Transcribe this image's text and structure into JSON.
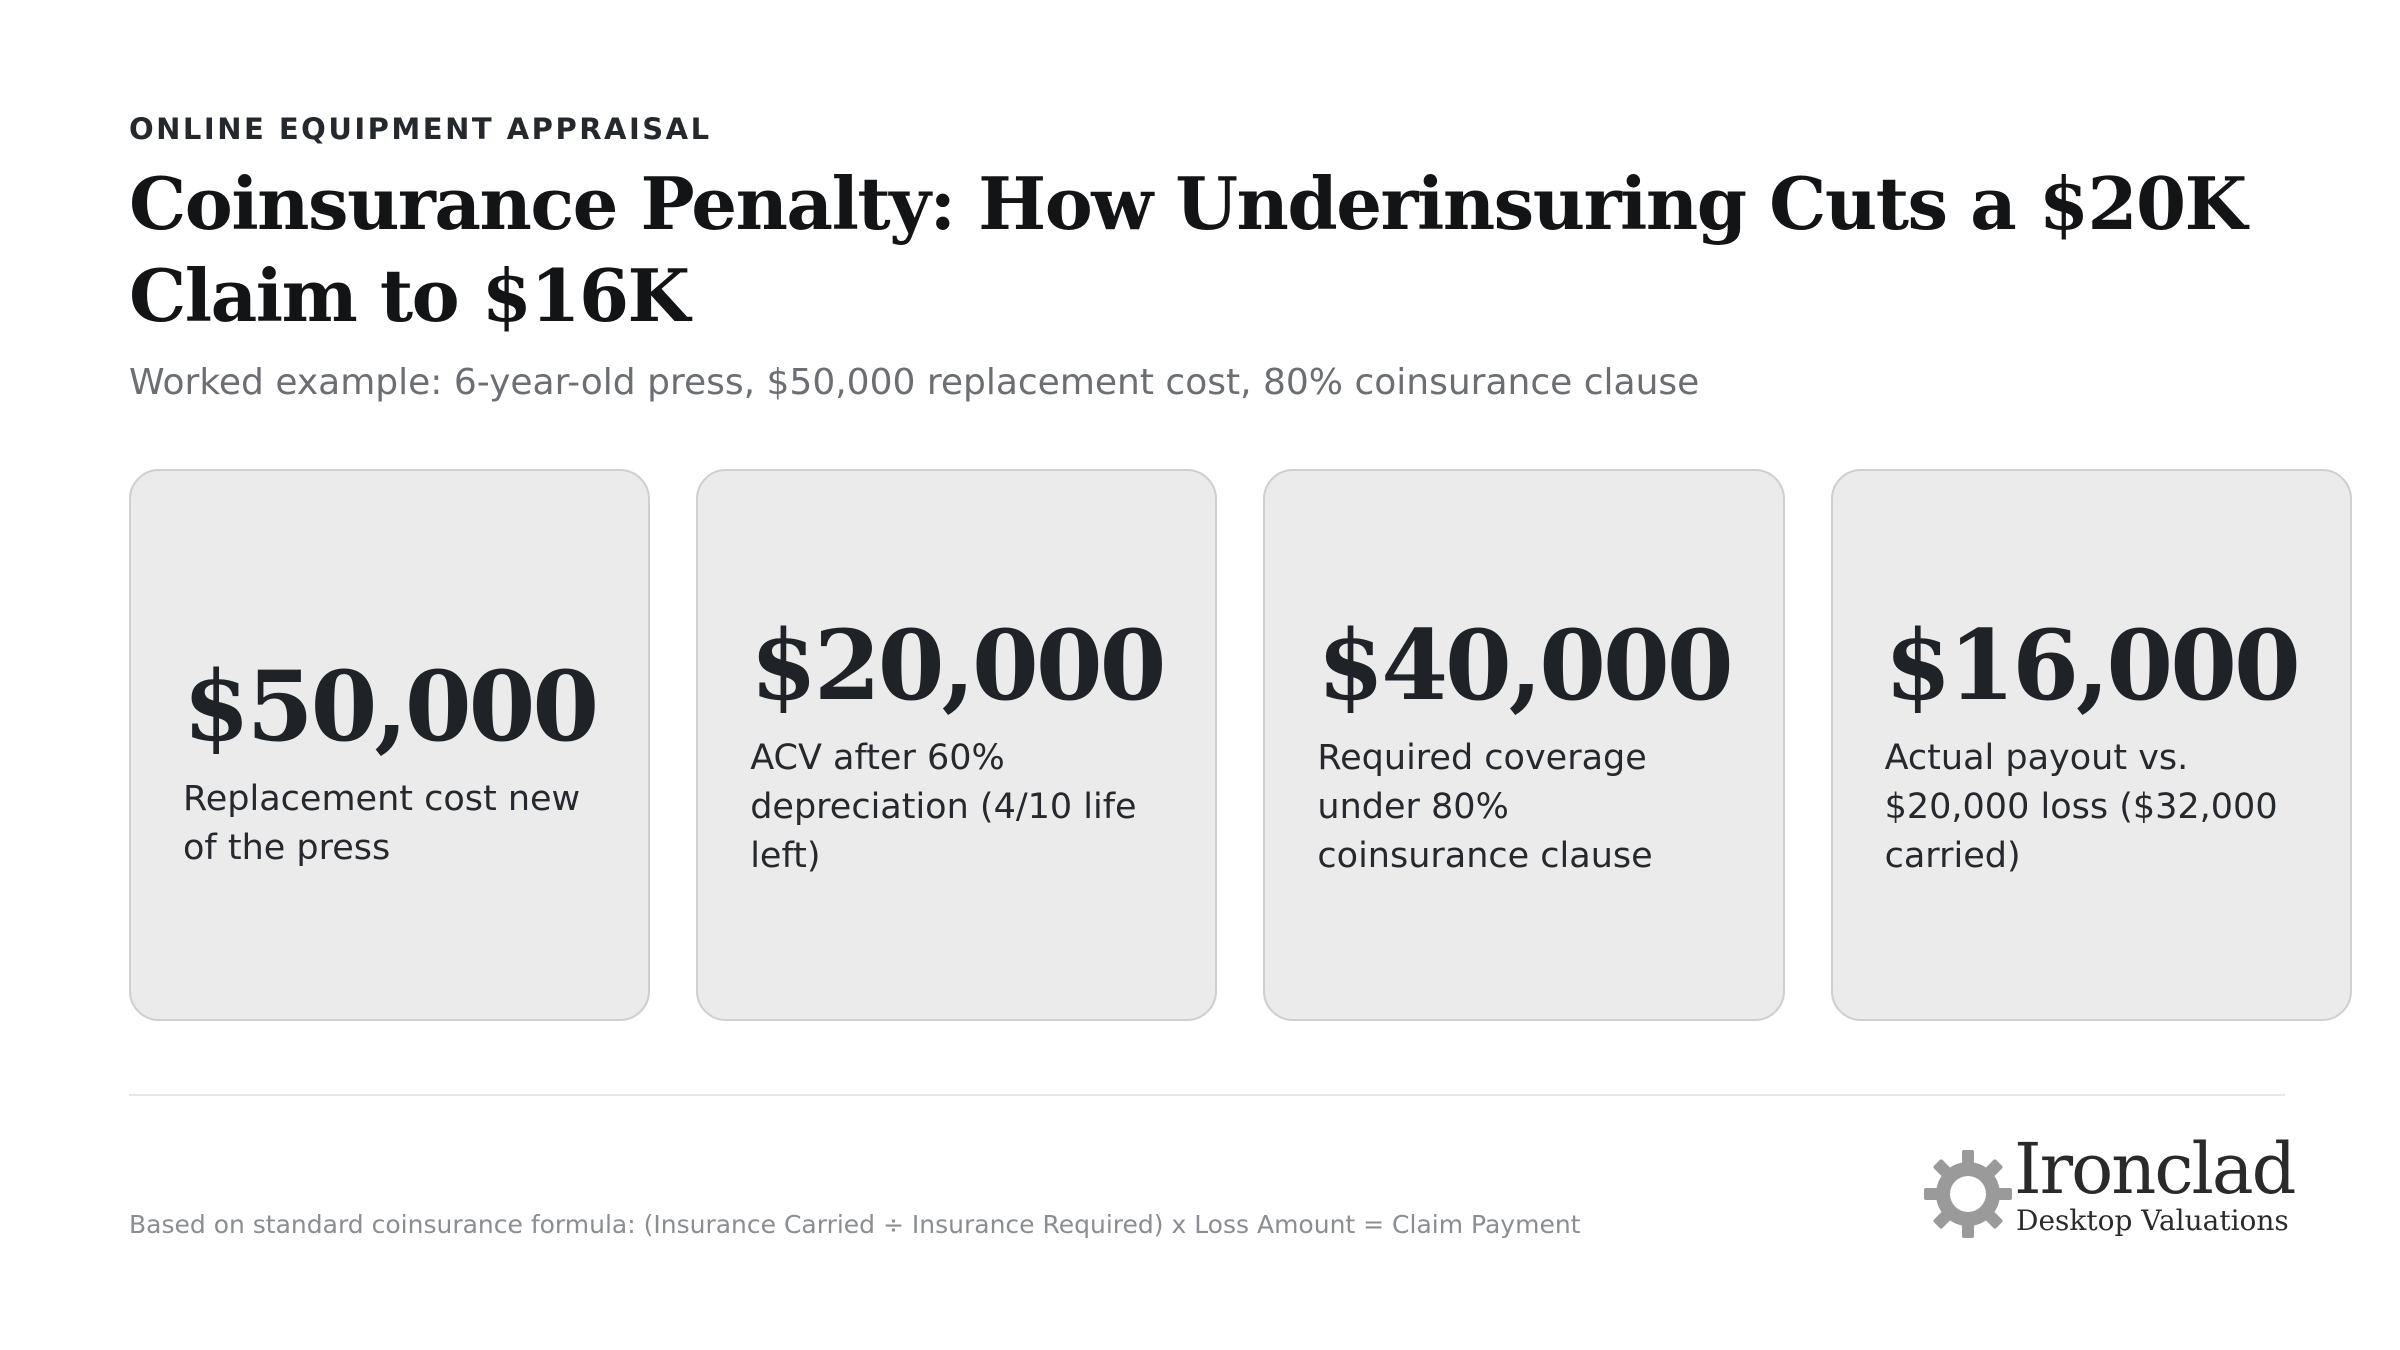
{
  "header": {
    "eyebrow": "ONLINE EQUIPMENT APPRAISAL",
    "title": "Coinsurance Penalty: How Underinsuring Cuts a $20K Claim to $16K",
    "subtitle": "Worked example: 6-year-old press, $50,000 replacement cost, 80% coinsurance clause"
  },
  "cards": [
    {
      "value": "$50,000",
      "label": "Replacement cost new of the press"
    },
    {
      "value": "$20,000",
      "label": "ACV after 60% depreciation (4/10 life left)"
    },
    {
      "value": "$40,000",
      "label": "Required coverage under 80% coinsurance clause"
    },
    {
      "value": "$16,000",
      "label": "Actual payout vs. $20,000 loss ($32,000 carried)"
    }
  ],
  "footer": {
    "footnote": "Based on standard coinsurance formula: (Insurance Carried ÷ Insurance Required) x Loss Amount = Claim Payment"
  },
  "logo": {
    "name": "Ironclad",
    "tagline": "Desktop Valuations",
    "icon": "gear-icon",
    "icon_color": "#9a9a9a"
  }
}
